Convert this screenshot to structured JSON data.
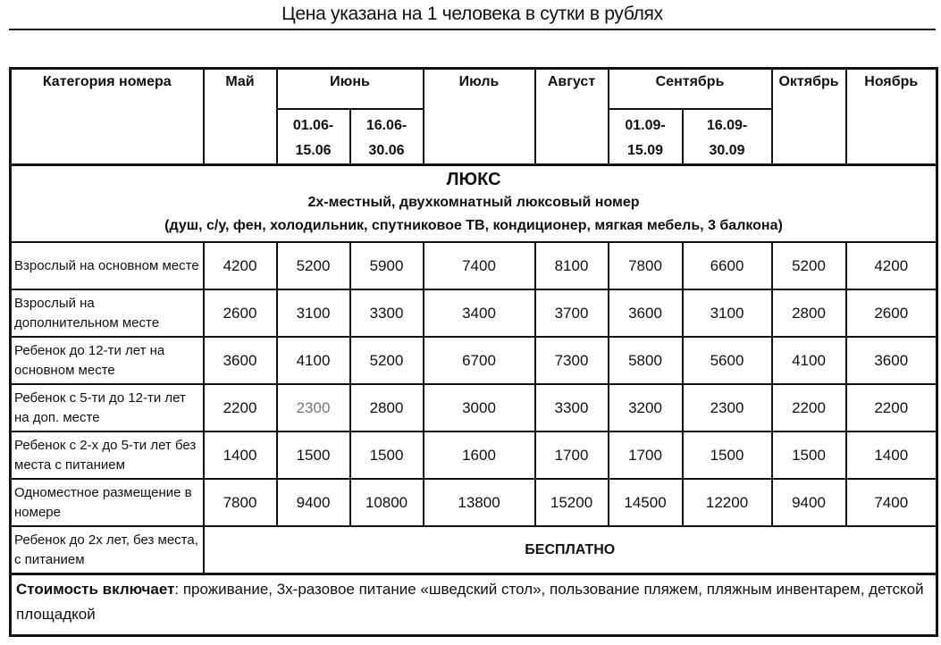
{
  "title": "Цена указана на 1 человека в сутки в рублях",
  "header": {
    "category": "Категория номера",
    "may": "Май",
    "june": "Июнь",
    "june_1": "01.06-15.06",
    "june_2": "16.06-30.06",
    "july": "Июль",
    "august": "Август",
    "september": "Сентябрь",
    "sept_1": "01.09-15.09",
    "sept_2": "16.09-30.09",
    "october": "Октябрь",
    "november": "Ноябрь"
  },
  "room": {
    "name": "ЛЮКС",
    "description": "2х-местный, двухкомнатный люксовый номер",
    "amenities": "(душ, с/у, фен, холодильник, спутниковое ТВ, кондиционер, мягкая мебель, 3 балкона)"
  },
  "rows": [
    {
      "category": "Взрослый на основном месте",
      "prices": [
        "4200",
        "5200",
        "5900",
        "7400",
        "8100",
        "7800",
        "6600",
        "5200",
        "4200"
      ]
    },
    {
      "category": "Взрослый на дополнительном месте",
      "prices": [
        "2600",
        "3100",
        "3300",
        "3400",
        "3700",
        "3600",
        "3100",
        "2800",
        "2600"
      ]
    },
    {
      "category": "Ребенок до 12-ти лет на основном месте",
      "prices": [
        "3600",
        "4100",
        "5200",
        "6700",
        "7300",
        "5800",
        "5600",
        "4100",
        "3600"
      ]
    },
    {
      "category": "Ребенок с 5-ти до 12-ти лет на доп. месте",
      "prices": [
        "2200",
        "2300",
        "2800",
        "3000",
        "3300",
        "3200",
        "2300",
        "2200",
        "2200"
      ]
    },
    {
      "category": "Ребенок с 2-х до 5-ти лет без места с питанием",
      "prices": [
        "1400",
        "1500",
        "1500",
        "1600",
        "1700",
        "1700",
        "1500",
        "1500",
        "1400"
      ]
    },
    {
      "category": "Одноместное размещение в номере",
      "prices": [
        "7800",
        "9400",
        "10800",
        "13800",
        "15200",
        "14500",
        "12200",
        "9400",
        "7400"
      ]
    }
  ],
  "free_row": {
    "category": "Ребенок до 2х лет, без места, с питанием",
    "value": "БЕСПЛАТНО"
  },
  "footer": {
    "label": "Стоимость включает",
    "text": ": проживание, 3х-разовое питание «шведский стол»,  пользование пляжем, пляжным инвентарем, детской площадкой"
  }
}
